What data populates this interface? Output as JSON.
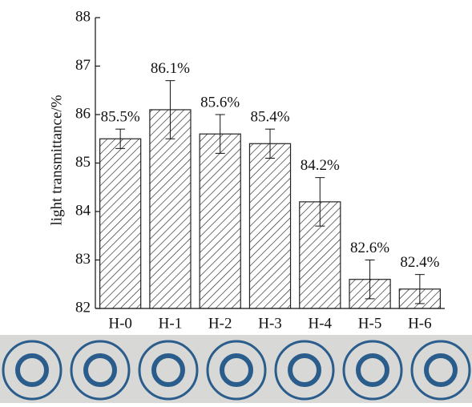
{
  "chart_data": {
    "type": "bar",
    "y_label": "light transmittance/%",
    "categories": [
      "H-0",
      "H-1",
      "H-2",
      "H-3",
      "H-4",
      "H-5",
      "H-6"
    ],
    "values": [
      85.5,
      86.1,
      85.6,
      85.4,
      84.2,
      82.6,
      82.4
    ],
    "value_labels": [
      "85.5%",
      "86.1%",
      "85.6%",
      "85.4%",
      "84.2%",
      "82.6%",
      "82.4%"
    ],
    "errors": [
      0.2,
      0.6,
      0.4,
      0.3,
      0.5,
      0.4,
      0.3
    ],
    "color": "#222222",
    "ylim": [
      82,
      88
    ],
    "yticks": [
      82,
      83,
      84,
      85,
      86,
      87,
      88
    ]
  }
}
